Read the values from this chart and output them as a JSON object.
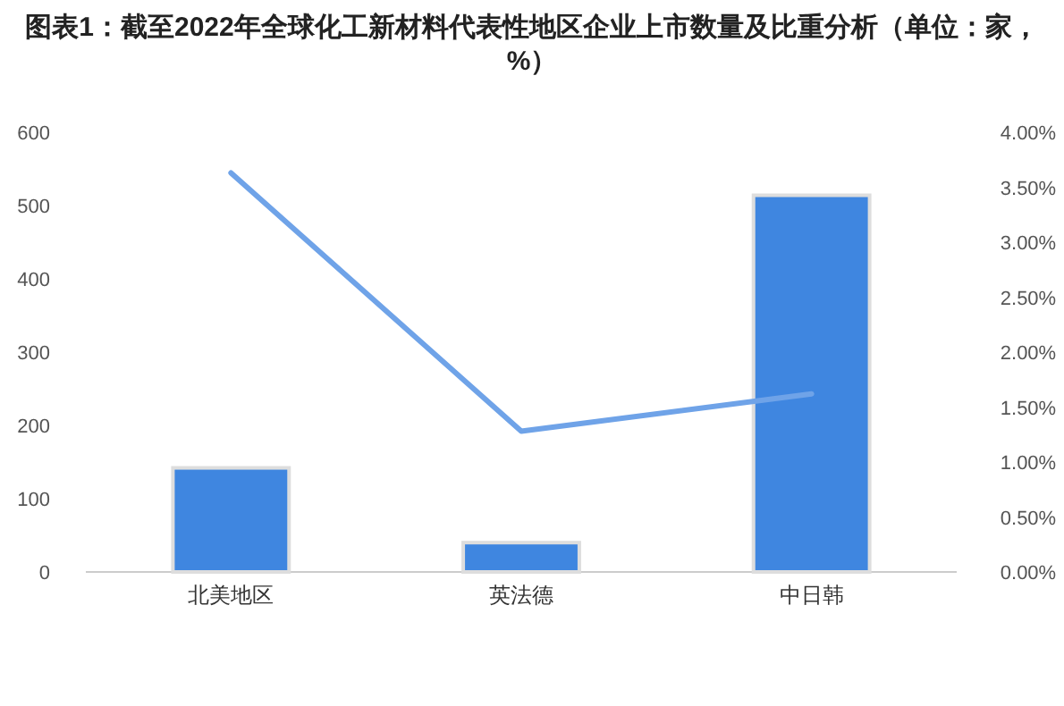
{
  "chart_data": {
    "type": "bar",
    "title": "图表1：截至2022年全球化工新材料代表性地区企业上市数量及比重分析（单位：家，%）",
    "categories": [
      "北美地区",
      "英法德",
      "中日韩"
    ],
    "series": [
      {
        "color": "#3f86e0",
        "values": [
          142,
          40,
          514
        ]
      },
      {
        "type": "line",
        "axis": "y2",
        "color": "#6fa3e8",
        "values": [
          3.63,
          1.28,
          1.62
        ]
      }
    ],
    "ylim": [
      0,
      600
    ],
    "yticks": [
      0,
      100,
      200,
      300,
      400,
      500,
      600
    ],
    "y2lim": [
      0,
      4
    ],
    "y2ticks": [
      {
        "value": 0,
        "label": "0.00%"
      },
      {
        "value": 0.5,
        "label": "0.50%"
      },
      {
        "value": 1,
        "label": "1.00%"
      },
      {
        "value": 1.5,
        "label": "1.50%"
      },
      {
        "value": 2,
        "label": "2.00%"
      },
      {
        "value": 2.5,
        "label": "2.50%"
      },
      {
        "value": 3,
        "label": "3.00%"
      },
      {
        "value": 3.5,
        "label": "3.50%"
      },
      {
        "value": 4,
        "label": "4.00%"
      }
    ]
  }
}
